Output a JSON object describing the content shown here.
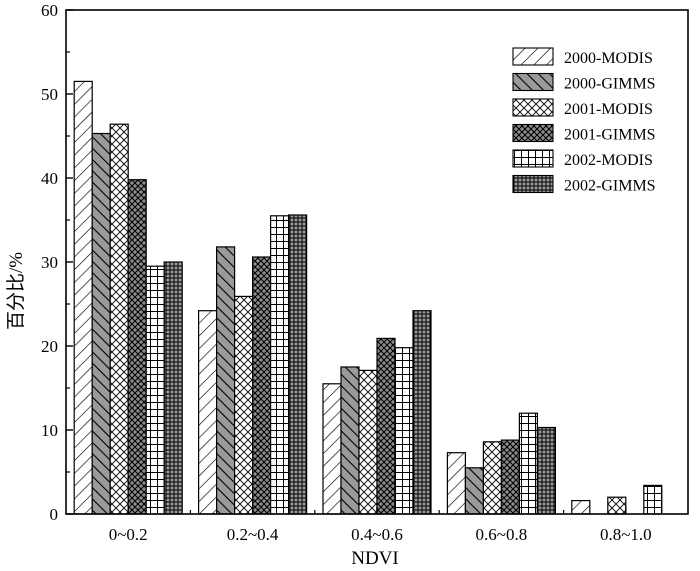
{
  "chart_data": {
    "type": "bar",
    "xlabel": "NDVI",
    "ylabel": "百分比/%",
    "ylim": [
      0,
      60
    ],
    "yticks": [
      0,
      10,
      20,
      30,
      40,
      50,
      60
    ],
    "categories": [
      "0~0.2",
      "0.2~0.4",
      "0.4~0.6",
      "0.6~0.8",
      "0.8~1.0"
    ],
    "legend_position": "top-right",
    "grid": false,
    "series": [
      {
        "name": "2000-MODIS",
        "pattern": "diagonal-thin",
        "values": [
          51.5,
          24.2,
          15.5,
          7.3,
          1.6
        ]
      },
      {
        "name": "2000-GIMMS",
        "pattern": "diagonal-grey",
        "values": [
          45.3,
          31.8,
          17.5,
          5.5,
          0
        ]
      },
      {
        "name": "2001-MODIS",
        "pattern": "crosshatch-light",
        "values": [
          46.4,
          25.9,
          17.1,
          8.6,
          2.0
        ]
      },
      {
        "name": "2001-GIMMS",
        "pattern": "crosshatch-grey",
        "values": [
          39.8,
          30.6,
          20.9,
          8.8,
          0
        ]
      },
      {
        "name": "2002-MODIS",
        "pattern": "grid-light",
        "values": [
          29.5,
          35.5,
          19.8,
          12.0,
          3.4
        ]
      },
      {
        "name": "2002-GIMMS",
        "pattern": "grid-dense",
        "values": [
          30.0,
          35.6,
          24.2,
          10.3,
          0
        ]
      }
    ]
  }
}
